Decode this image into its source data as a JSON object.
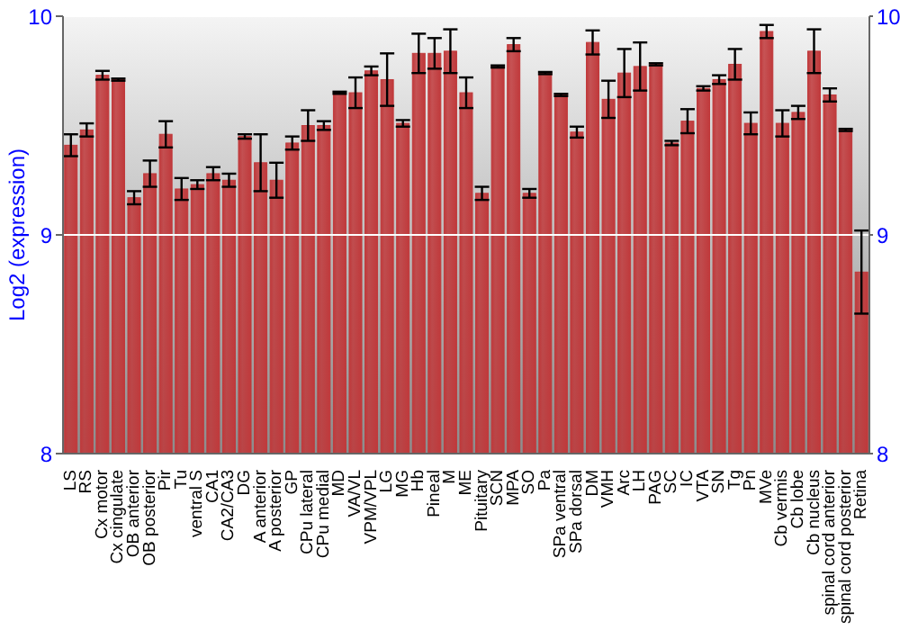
{
  "chart_data": {
    "type": "bar",
    "ylabel": "Log2 (expression)",
    "categories": [
      "LS",
      "RS",
      "Cx motor",
      "Cx cingulate",
      "OB anterior",
      "OB posterior",
      "Pir",
      "Tu",
      "ventral S",
      "CA1",
      "CA2/CA3",
      "DG",
      "A anterior",
      "A posterior",
      "GP",
      "CPu lateral",
      "CPu medial",
      "MD",
      "VA/VL",
      "VPM/VPL",
      "LG",
      "MG",
      "Hb",
      "Pineal",
      "M",
      "ME",
      "Pituitary",
      "SCN",
      "MPA",
      "SO",
      "Pa",
      "SPa ventral",
      "SPa dorsal",
      "DM",
      "VMH",
      "Arc",
      "LH",
      "PAG",
      "SC",
      "IC",
      "VTA",
      "SN",
      "Tg",
      "Pn",
      "MVe",
      "Cb vermis",
      "Cb lobe",
      "Cb nucleus",
      "spinal cord anterior",
      "spinal cord posterior",
      "Retina"
    ],
    "values": [
      9.41,
      9.48,
      9.73,
      9.71,
      9.17,
      9.28,
      9.46,
      9.21,
      9.23,
      9.28,
      9.25,
      9.45,
      9.33,
      9.25,
      9.42,
      9.5,
      9.5,
      9.65,
      9.65,
      9.75,
      9.71,
      9.51,
      9.83,
      9.83,
      9.84,
      9.65,
      9.19,
      9.77,
      9.87,
      9.19,
      9.74,
      9.64,
      9.47,
      9.88,
      9.62,
      9.74,
      9.77,
      9.78,
      9.42,
      9.52,
      9.67,
      9.71,
      9.78,
      9.51,
      9.93,
      9.51,
      9.56,
      9.84,
      9.64,
      9.48,
      8.83
    ],
    "errors": [
      0.05,
      0.03,
      0.02,
      0.005,
      0.03,
      0.06,
      0.06,
      0.05,
      0.02,
      0.03,
      0.03,
      0.01,
      0.13,
      0.08,
      0.03,
      0.07,
      0.02,
      0.005,
      0.07,
      0.02,
      0.12,
      0.015,
      0.09,
      0.07,
      0.1,
      0.07,
      0.03,
      0.005,
      0.03,
      0.02,
      0.005,
      0.005,
      0.025,
      0.055,
      0.085,
      0.11,
      0.11,
      0.005,
      0.01,
      0.055,
      0.01,
      0.02,
      0.07,
      0.05,
      0.03,
      0.06,
      0.03,
      0.1,
      0.03,
      0.005,
      0.19
    ],
    "color": "#c0393b",
    "ylim": [
      8,
      10
    ],
    "yticks": [
      8,
      9,
      10
    ],
    "y2lim": [
      8,
      10
    ],
    "y2ticks": [
      8,
      9,
      10
    ],
    "grid": "y"
  }
}
